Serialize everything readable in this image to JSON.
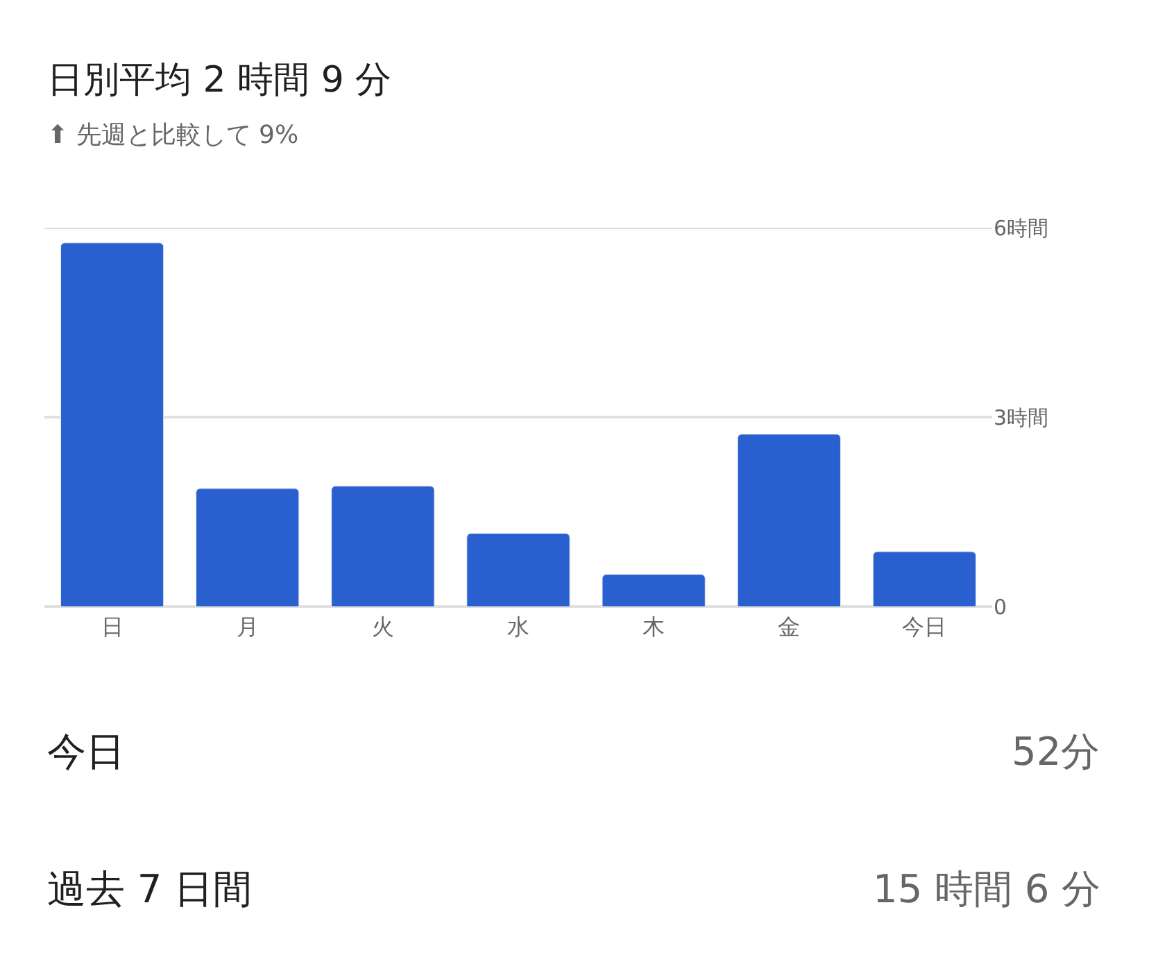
{
  "chart_data": {
    "type": "bar",
    "title": "日別平均 2 時間 9 分",
    "subtitle": "⬆ 先週と比較して 9%",
    "categories": [
      "日",
      "月",
      "火",
      "水",
      "木",
      "金",
      "今日"
    ],
    "values": [
      5.76,
      1.87,
      1.91,
      1.16,
      0.51,
      2.73,
      0.87
    ],
    "color": "#2a5fcf",
    "ylim": [
      0,
      6
    ],
    "yticks": [
      {
        "value": 0,
        "label": "0"
      },
      {
        "value": 3,
        "label": "3時間"
      },
      {
        "value": 6,
        "label": "6時間"
      }
    ],
    "grid": "y",
    "annotations": [
      "今日",
      "52分",
      "過去 7 日間",
      "15 時間 6 分"
    ]
  }
}
